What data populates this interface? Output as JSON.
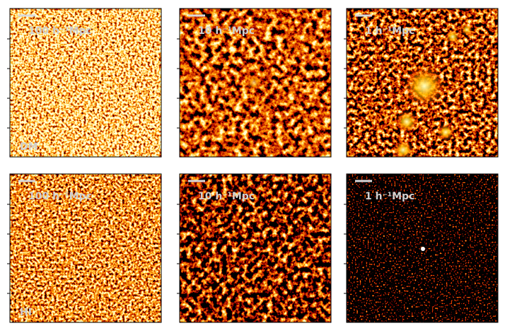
{
  "panels": [
    {
      "scale": "100 h⁻¹Mpc",
      "label": "DM"
    },
    {
      "scale": "10 h⁻¹Mpc"
    },
    {
      "scale": "1 h⁻¹Mpc"
    },
    {
      "scale": "100 h⁻¹Mpc",
      "label": "HI"
    },
    {
      "scale": "10 h⁻¹Mpc"
    },
    {
      "scale": "1 h⁻¹Mpc"
    }
  ]
}
